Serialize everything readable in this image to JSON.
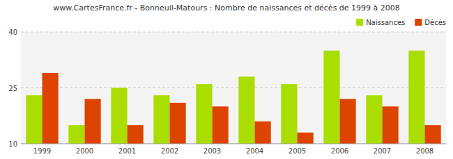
{
  "chart_data": {
    "type": "bar",
    "title": "www.CartesFrance.fr - Bonneuil-Matours : Nombre de naissances et décès de 1999 à 2008",
    "categories": [
      "1999",
      "2000",
      "2001",
      "2002",
      "2003",
      "2004",
      "2005",
      "2006",
      "2007",
      "2008"
    ],
    "series": [
      {
        "name": "Naissances",
        "color": "#AADD00",
        "values": [
          23,
          15,
          25,
          23,
          26,
          28,
          26,
          35,
          23,
          35
        ]
      },
      {
        "name": "Décès",
        "color": "#DD4400",
        "values": [
          29,
          22,
          15,
          21,
          20,
          16,
          13,
          22,
          20,
          15
        ]
      }
    ],
    "ylim": [
      10,
      40
    ],
    "yticks": [
      10,
      25,
      40
    ],
    "grid": true,
    "legend": "upper right"
  }
}
